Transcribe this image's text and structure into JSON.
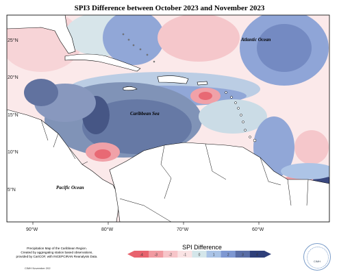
{
  "title": "SPI3 Difference between October 2023 and November 2023",
  "oceans": {
    "atlantic": "Atlantic Ocean",
    "caribbean": "Caribbean Sea",
    "pacific": "Pacific Ocean"
  },
  "axes": {
    "lat_ticks": [
      "25°N",
      "20°N",
      "15°N",
      "10°N",
      "5°N"
    ],
    "lon_ticks": [
      "90°W",
      "80°W",
      "70°W",
      "60°W"
    ]
  },
  "credits": {
    "lines": [
      "Precipitation Map of the Caribbean Region.",
      "Created by aggregating station based observations,",
      "provided by CariCOF, with INCEPCIRAN Reanalysis Data."
    ],
    "stamp": "CIMH November 202"
  },
  "legend": {
    "title": "SPI Difference",
    "ticks": [
      "-4",
      "-3",
      "-2",
      "-1",
      "0",
      "1",
      "2",
      "3",
      "4"
    ],
    "colors": [
      "#e8636e",
      "#f19aa1",
      "#f7c5c9",
      "#fae3e4",
      "#d4e6ea",
      "#a9c3e6",
      "#7e98d2",
      "#5a6ea6",
      "#2f3f7a"
    ]
  },
  "logo": {
    "text": "CIMH"
  }
}
